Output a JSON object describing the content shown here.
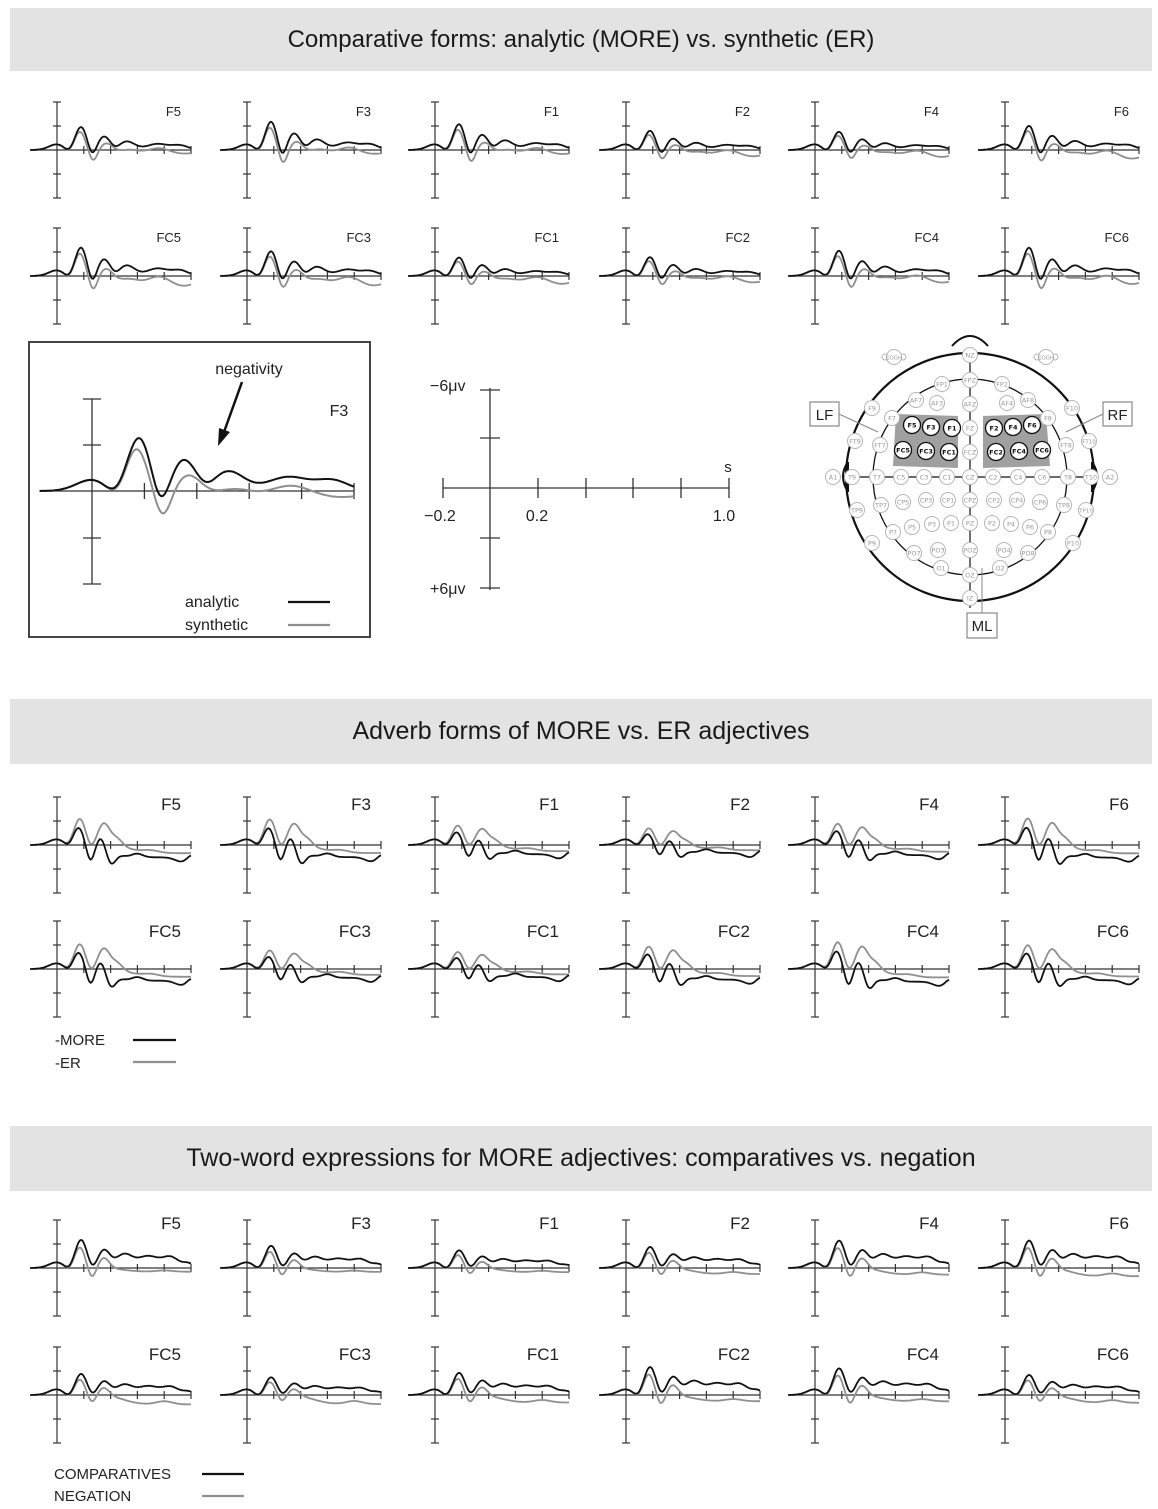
{
  "banners": {
    "top": "Comparative forms: analytic (MORE) vs. synthetic (ER)",
    "middle": "Adverb forms of MORE vs. ER adjectives",
    "bottom": "Two-word expressions for MORE adjectives: comparatives vs. negation"
  },
  "colors": {
    "series_black": "#111111",
    "series_gray": "#8f8f8f",
    "banner": "#e3e3e3",
    "roi": "#a0a0a0",
    "electrode_outline": "#b5b5b5"
  },
  "inset": {
    "annotation": "negativity",
    "electrode": "F3",
    "legend": [
      {
        "label": "analytic",
        "color": "#111111"
      },
      {
        "label": "synthetic",
        "color": "#8f8f8f"
      }
    ]
  },
  "scale": {
    "y_top": "−6μv",
    "y_bottom": "+6μv",
    "x_unit": "s",
    "x_start": "−0.2",
    "x_mid": "0.2",
    "x_end": "1.0"
  },
  "head_map": {
    "region_labels": {
      "left": "LF",
      "right": "RF",
      "midline": "ML"
    },
    "highlighted": [
      "F5",
      "F3",
      "F1",
      "F2",
      "F4",
      "F6",
      "FC5",
      "FC3",
      "FC1",
      "FC2",
      "FC4",
      "FC6"
    ],
    "electrodes": [
      "EOGH",
      "EOGH",
      "NZ",
      "FPZ",
      "FP1",
      "FP2",
      "AF7",
      "AF3",
      "AFZ",
      "AF4",
      "AF8",
      "F9",
      "F7",
      "F5",
      "F3",
      "F1",
      "FZ",
      "F2",
      "F4",
      "F6",
      "F8",
      "F10",
      "FT9",
      "FT7",
      "FC5",
      "FC3",
      "FC1",
      "FCZ",
      "FC2",
      "FC4",
      "FC6",
      "FT8",
      "FT10",
      "A1",
      "T9",
      "T7",
      "C5",
      "C3",
      "C1",
      "CZ",
      "C2",
      "C4",
      "C6",
      "T8",
      "T10",
      "A2",
      "TP9",
      "TP7",
      "CP5",
      "CP3",
      "CP1",
      "CPZ",
      "CP2",
      "CP4",
      "CP6",
      "TP8",
      "TP10",
      "P9",
      "P7",
      "P5",
      "P3",
      "P1",
      "PZ",
      "P2",
      "P4",
      "P6",
      "P8",
      "P10",
      "PO7",
      "PO3",
      "POZ",
      "PO4",
      "PO8",
      "O1",
      "OZ",
      "O2",
      "IZ"
    ]
  },
  "legends": {
    "middle": [
      {
        "label": "-MORE",
        "color": "#111111"
      },
      {
        "label": "-ER",
        "color": "#8f8f8f"
      }
    ],
    "bottom": [
      {
        "label": "COMPARATIVES",
        "color": "#111111"
      },
      {
        "label": "NEGATION",
        "color": "#8f8f8f"
      }
    ]
  },
  "chart_data": [
    {
      "type": "line",
      "title": "Comparative forms: analytic (MORE) vs. synthetic (ER)",
      "panels": [
        "F5",
        "F3",
        "F1",
        "F2",
        "F4",
        "F6",
        "FC5",
        "FC3",
        "FC1",
        "FC2",
        "FC4",
        "FC6"
      ],
      "x_range_s": [
        -0.2,
        1.0
      ],
      "y_range_uv": [
        6,
        -6
      ],
      "series": [
        {
          "name": "analytic",
          "color": "#111111"
        },
        {
          "name": "synthetic",
          "color": "#8f8f8f"
        }
      ]
    },
    {
      "type": "line",
      "title": "Adverb forms of MORE vs. ER adjectives",
      "panels": [
        "F5",
        "F3",
        "F1",
        "F2",
        "F4",
        "F6",
        "FC5",
        "FC3",
        "FC1",
        "FC2",
        "FC4",
        "FC6"
      ],
      "x_range_s": [
        -0.2,
        1.0
      ],
      "y_range_uv": [
        6,
        -6
      ],
      "series": [
        {
          "name": "-MORE",
          "color": "#111111"
        },
        {
          "name": "-ER",
          "color": "#8f8f8f"
        }
      ]
    },
    {
      "type": "line",
      "title": "Two-word expressions for MORE adjectives: comparatives vs. negation",
      "panels": [
        "F5",
        "F3",
        "F1",
        "F2",
        "F4",
        "F6",
        "FC5",
        "FC3",
        "FC1",
        "FC2",
        "FC4",
        "FC6"
      ],
      "x_range_s": [
        -0.2,
        1.0
      ],
      "y_range_uv": [
        6,
        -6
      ],
      "series": [
        {
          "name": "COMPARATIVES",
          "color": "#111111"
        },
        {
          "name": "NEGATION",
          "color": "#8f8f8f"
        }
      ]
    }
  ]
}
